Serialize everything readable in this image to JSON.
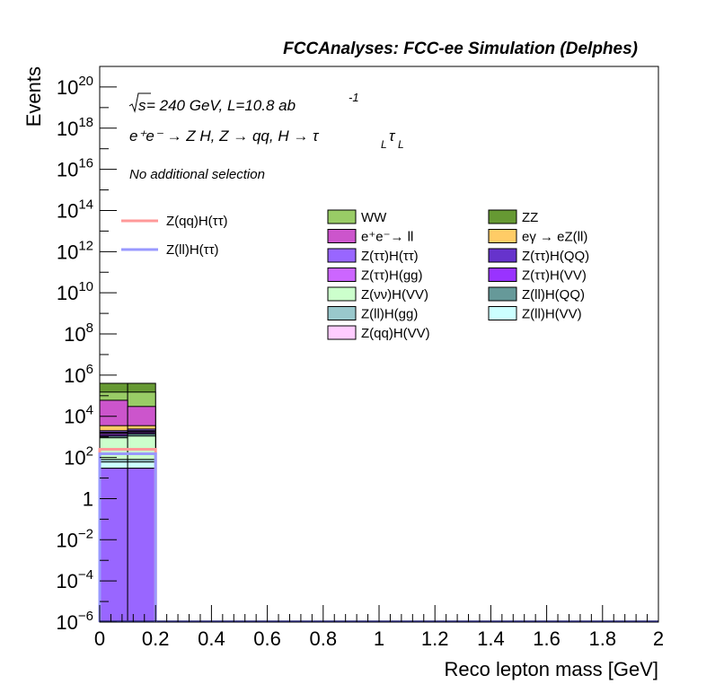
{
  "header": {
    "title": "FCCAnalyses: FCC-ee Simulation (Delphes)"
  },
  "annotations": {
    "energy_line_prefix": "s",
    "energy_line_rest": " = 240 GeV, L=10.8 ab",
    "lumi_exponent": "-1",
    "process": "e⁺e⁻ → Z H, Z  → qq, H  → τ",
    "process_sub1": "L",
    "process_tau2": "τ",
    "process_sub2": "L",
    "selection": "No additional selection"
  },
  "chart_data": {
    "type": "bar",
    "stacked": true,
    "log_y": true,
    "title": "FCCAnalyses: FCC-ee Simulation (Delphes)",
    "xlabel": "Reco lepton mass [GeV]",
    "ylabel": "Events",
    "xlim": [
      0,
      2
    ],
    "ylim": [
      1e-06,
      1e+21
    ],
    "x_ticks": [
      {
        "value": 0,
        "label": "0"
      },
      {
        "value": 0.2,
        "label": "0.2"
      },
      {
        "value": 0.4,
        "label": "0.4"
      },
      {
        "value": 0.6,
        "label": "0.6"
      },
      {
        "value": 0.8,
        "label": "0.8"
      },
      {
        "value": 1.0,
        "label": "1"
      },
      {
        "value": 1.2,
        "label": "1.2"
      },
      {
        "value": 1.4,
        "label": "1.4"
      },
      {
        "value": 1.6,
        "label": "1.6"
      },
      {
        "value": 1.8,
        "label": "1.8"
      },
      {
        "value": 2.0,
        "label": "2"
      }
    ],
    "y_ticks": [
      {
        "exp": -6,
        "base": "10",
        "sup": "−6"
      },
      {
        "exp": -4,
        "base": "10",
        "sup": "−4"
      },
      {
        "exp": -2,
        "base": "10",
        "sup": "−2"
      },
      {
        "exp": 0,
        "base": "1",
        "sup": ""
      },
      {
        "exp": 2,
        "base": "10",
        "sup": "2"
      },
      {
        "exp": 4,
        "base": "10",
        "sup": "4"
      },
      {
        "exp": 6,
        "base": "10",
        "sup": "6"
      },
      {
        "exp": 8,
        "base": "10",
        "sup": "8"
      },
      {
        "exp": 10,
        "base": "10",
        "sup": "10"
      },
      {
        "exp": 12,
        "base": "10",
        "sup": "12"
      },
      {
        "exp": 14,
        "base": "10",
        "sup": "14"
      },
      {
        "exp": 16,
        "base": "10",
        "sup": "16"
      },
      {
        "exp": 18,
        "base": "10",
        "sup": "18"
      },
      {
        "exp": 20,
        "base": "10",
        "sup": "20"
      }
    ],
    "bin_edges": [
      0,
      0.1,
      0.2
    ],
    "stack_cumulative_tops": [
      {
        "name": "Z(qq)H(VV)",
        "color": "#ffccff",
        "values": [
          30,
          30
        ]
      },
      {
        "name": "Z(ll)H(VV)",
        "color": "#ccffff",
        "values": [
          60,
          60
        ]
      },
      {
        "name": "Z(ll)H(gg)",
        "color": "#99c8cc",
        "values": [
          80,
          80
        ]
      },
      {
        "name": "Z(νν)H(VV)",
        "color": "#ccffcc",
        "values": [
          900,
          1100
        ]
      },
      {
        "name": "Z(ll)H(QQ)",
        "color": "#669999",
        "values": [
          1100,
          1400
        ]
      },
      {
        "name": "Z(ττ)H(VV)",
        "color": "#9933ff",
        "values": [
          1300,
          1600
        ]
      },
      {
        "name": "Z(ττ)H(gg)",
        "color": "#cc66ff",
        "values": [
          1500,
          1800
        ]
      },
      {
        "name": "Z(ττ)H(QQ)",
        "color": "#6633cc",
        "values": [
          1700,
          2000
        ]
      },
      {
        "name": "Z(ττ)H(ττ)",
        "color": "#9966ff",
        "values": [
          2000,
          2400
        ]
      },
      {
        "name": "eγ → eZ(ll)",
        "color": "#ffcc66",
        "values": [
          3500,
          3500
        ]
      },
      {
        "name": "e⁺e⁻→ ll",
        "color": "#cc55cc",
        "values": [
          60000,
          30000
        ]
      },
      {
        "name": "WW",
        "color": "#99cc66",
        "values": [
          150000,
          150000
        ]
      },
      {
        "name": "ZZ",
        "color": "#669933",
        "values": [
          400000,
          400000
        ]
      }
    ],
    "base_band": {
      "name": "Z(qq)H(ττ) base",
      "color": "#9966ff",
      "values": [
        30,
        30
      ]
    },
    "signals": [
      {
        "name": "Z(qq)H(ττ)",
        "color": "#ff9999",
        "values": [
          250,
          250
        ]
      },
      {
        "name": "Z(ll)H(ττ)",
        "color": "#9999ff",
        "values": [
          150,
          150
        ]
      }
    ],
    "legend_signals": [
      {
        "name": "Z(qq)H(ττ)",
        "color": "#ff9999"
      },
      {
        "name": "Z(ll)H(ττ)",
        "color": "#9999ff"
      }
    ],
    "legend_backgrounds": [
      {
        "name": "WW",
        "color": "#99cc66"
      },
      {
        "name": "ZZ",
        "color": "#669933"
      },
      {
        "name": "e⁺e⁻→ ll",
        "color": "#cc55cc"
      },
      {
        "name": "eγ  → eZ(ll)",
        "color": "#ffcc66"
      },
      {
        "name": "Z(ττ)H(ττ)",
        "color": "#9966ff"
      },
      {
        "name": "Z(ττ)H(QQ)",
        "color": "#6633cc"
      },
      {
        "name": "Z(ττ)H(gg)",
        "color": "#cc66ff"
      },
      {
        "name": "Z(ττ)H(VV)",
        "color": "#9933ff"
      },
      {
        "name": "Z(νν)H(VV)",
        "color": "#ccffcc"
      },
      {
        "name": "Z(ll)H(QQ)",
        "color": "#669999"
      },
      {
        "name": "Z(ll)H(gg)",
        "color": "#99c8cc"
      },
      {
        "name": "Z(ll)H(VV)",
        "color": "#ccffff"
      },
      {
        "name": "Z(qq)H(VV)",
        "color": "#ffccff"
      }
    ]
  }
}
